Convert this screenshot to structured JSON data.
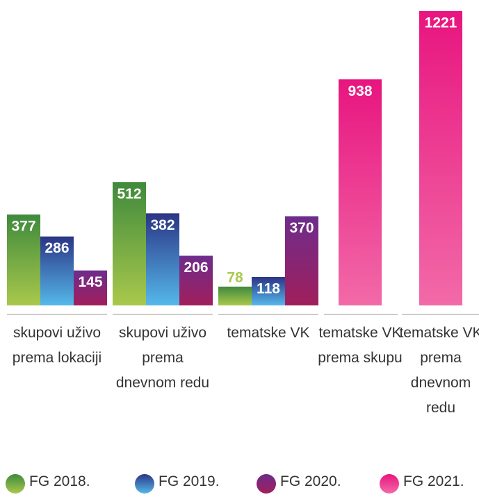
{
  "chart_data": {
    "type": "bar",
    "categories": [
      "skupovi uživo prema lokaciji",
      "skupovi uživo prema dnevnom redu",
      "tematske VK",
      "tematske VK prema skupu",
      "tematske VK prema dnevnom redu"
    ],
    "series": [
      {
        "name": "FG 2018.",
        "color": "#3f8a3c",
        "gradient_end": "#a9c84c",
        "values": [
          377,
          512,
          78,
          null,
          null
        ]
      },
      {
        "name": "FG 2019.",
        "color": "#2b3585",
        "gradient_end": "#55b8ea",
        "values": [
          286,
          382,
          118,
          null,
          null
        ]
      },
      {
        "name": "FG 2020.",
        "color": "#6e2c8c",
        "gradient_end": "#a01f5c",
        "values": [
          145,
          206,
          370,
          null,
          null
        ]
      },
      {
        "name": "FG 2021.",
        "color": "#e8157f",
        "gradient_end": "#f26aa8",
        "values": [
          null,
          null,
          null,
          938,
          1221
        ]
      }
    ]
  }
}
